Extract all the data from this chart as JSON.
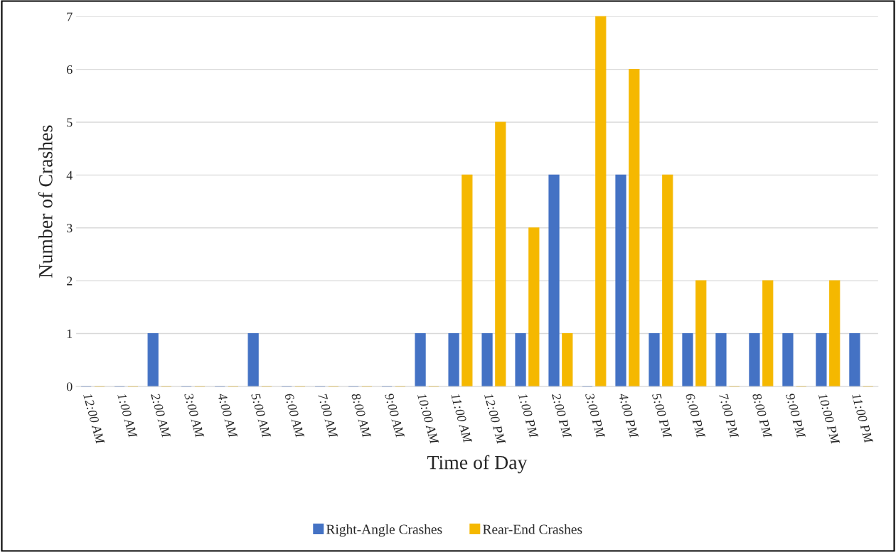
{
  "chart_data": {
    "type": "bar",
    "xlabel": "Time of Day",
    "ylabel": "Number of Crashes",
    "categories": [
      "12:00 AM",
      "1:00 AM",
      "2:00 AM",
      "3:00 AM",
      "4:00 AM",
      "5:00 AM",
      "6:00 AM",
      "7:00 AM",
      "8:00 AM",
      "9:00 AM",
      "10:00 AM",
      "11:00 AM",
      "12:00 PM",
      "1:00 PM",
      "2:00 PM",
      "3:00 PM",
      "4:00 PM",
      "5:00 PM",
      "6:00 PM",
      "7:00 PM",
      "8:00 PM",
      "9:00 PM",
      "10:00 PM",
      "11:00 PM"
    ],
    "series": [
      {
        "name": "Right-Angle Crashes",
        "color": "#4472c4",
        "values": [
          0,
          0,
          1,
          0,
          0,
          1,
          0,
          0,
          0,
          0,
          1,
          1,
          1,
          1,
          4,
          0,
          4,
          1,
          1,
          1,
          1,
          1,
          1,
          1
        ]
      },
      {
        "name": "Rear-End Crashes",
        "color": "#f5b800",
        "values": [
          0,
          0,
          0,
          0,
          0,
          0,
          0,
          0,
          0,
          0,
          0,
          4,
          5,
          3,
          1,
          7,
          6,
          4,
          2,
          0,
          2,
          0,
          2,
          0
        ]
      }
    ],
    "ylim": [
      0,
      7
    ],
    "yticks": [
      0,
      1,
      2,
      3,
      4,
      5,
      6,
      7
    ],
    "grid": "y",
    "legend": "bottom"
  }
}
